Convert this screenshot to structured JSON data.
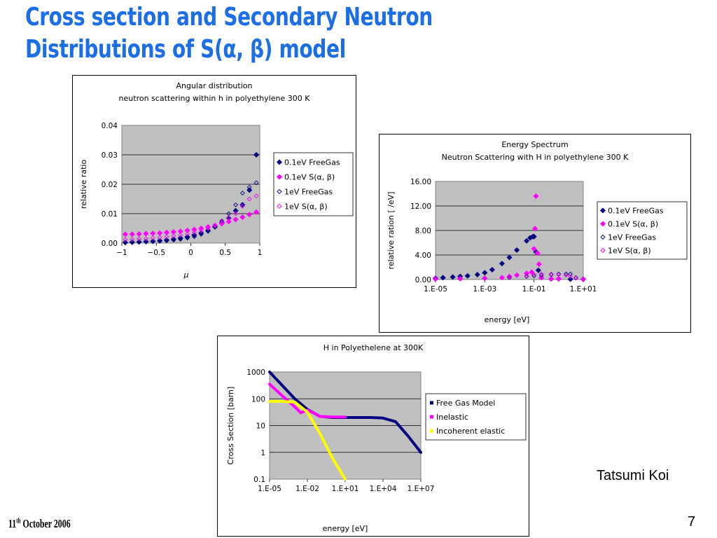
{
  "slide": {
    "title_line1": "Cross section and Secondary Neutron",
    "title_line2": "Distributions of S(α, β) model",
    "author": "Tatsumi Koi",
    "date_day": "11",
    "date_suffix": "th",
    "date_rest": " October 2006",
    "page_number": "7"
  },
  "colors": {
    "plot_bg": "#c0c0c0",
    "navy": "#000080",
    "magenta": "#ff00ff",
    "yellow": "#ffff00"
  },
  "chart_data": [
    {
      "type": "scatter",
      "title": "Angular distribution",
      "subtitle": "neutron scattering  within h in polyethylene 300 K",
      "xlabel": "μ",
      "ylabel": "relative ratio",
      "xlim": [
        -1,
        1
      ],
      "ylim": [
        0,
        0.04
      ],
      "xticks": [
        "−1",
        "−0.5",
        "0",
        "0.5",
        "1"
      ],
      "yticks": [
        "0.00",
        "0.01",
        "0.02",
        "0.03",
        "0.04"
      ],
      "grid": true,
      "legend_position": "right",
      "series": [
        {
          "name": "0.1eV FreeGas",
          "marker": "diamond-filled",
          "color": "#000080",
          "x": [
            -0.95,
            -0.85,
            -0.75,
            -0.65,
            -0.55,
            -0.45,
            -0.35,
            -0.25,
            -0.15,
            -0.05,
            0.05,
            0.15,
            0.25,
            0.35,
            0.45,
            0.55,
            0.65,
            0.75,
            0.85,
            0.95
          ],
          "y": [
            0.0002,
            0.0003,
            0.0004,
            0.0005,
            0.0006,
            0.0008,
            0.001,
            0.0013,
            0.0017,
            0.0021,
            0.0027,
            0.0034,
            0.0043,
            0.0055,
            0.007,
            0.0085,
            0.011,
            0.013,
            0.018,
            0.03
          ]
        },
        {
          "name": "0.1eV S(α, β)",
          "marker": "diamond-filled",
          "color": "#ff00ff",
          "x": [
            -0.95,
            -0.85,
            -0.75,
            -0.65,
            -0.55,
            -0.45,
            -0.35,
            -0.25,
            -0.15,
            -0.05,
            0.05,
            0.15,
            0.25,
            0.35,
            0.45,
            0.55,
            0.65,
            0.75,
            0.85,
            0.95
          ],
          "y": [
            0.003,
            0.003,
            0.0031,
            0.0032,
            0.0033,
            0.0034,
            0.0036,
            0.0038,
            0.004,
            0.0043,
            0.0046,
            0.005,
            0.0055,
            0.006,
            0.0066,
            0.0073,
            0.008,
            0.0088,
            0.0097,
            0.0105
          ]
        },
        {
          "name": "1eV FreeGas",
          "marker": "diamond-open",
          "color": "#000080",
          "x": [
            -0.95,
            -0.85,
            -0.75,
            -0.65,
            -0.55,
            -0.45,
            -0.35,
            -0.25,
            -0.15,
            -0.05,
            0.05,
            0.15,
            0.25,
            0.35,
            0.45,
            0.55,
            0.65,
            0.75,
            0.85,
            0.95
          ],
          "y": [
            0.0001,
            0.0002,
            0.0003,
            0.0004,
            0.0005,
            0.0006,
            0.0008,
            0.001,
            0.0013,
            0.0017,
            0.0022,
            0.003,
            0.004,
            0.0055,
            0.0075,
            0.01,
            0.013,
            0.017,
            0.019,
            0.0205
          ]
        },
        {
          "name": "1eV S(α, β)",
          "marker": "diamond-open",
          "color": "#ff00ff",
          "x": [
            -0.95,
            -0.85,
            -0.75,
            -0.65,
            -0.55,
            -0.45,
            -0.35,
            -0.25,
            -0.15,
            -0.05,
            0.05,
            0.15,
            0.25,
            0.35,
            0.45,
            0.55,
            0.65,
            0.75,
            0.85,
            0.95
          ],
          "y": [
            0.0012,
            0.0013,
            0.0014,
            0.0015,
            0.0017,
            0.0019,
            0.0021,
            0.0024,
            0.0027,
            0.0031,
            0.0036,
            0.0042,
            0.005,
            0.006,
            0.0072,
            0.0086,
            0.01,
            0.0125,
            0.015,
            0.016
          ]
        }
      ]
    },
    {
      "type": "scatter",
      "title": "Energy Spectrum",
      "subtitle": "Neutron Scattering with H in polyethylene 300 K",
      "xlabel": "energy [eV]",
      "ylabel": "relative ration [ /eV]",
      "xscale": "log",
      "xlim": [
        "1.E-05",
        "1.E+01"
      ],
      "ylim": [
        0,
        16
      ],
      "xticks": [
        "1.E-05",
        "1.E-03",
        "1.E-01",
        "1.E+01"
      ],
      "yticks": [
        "0.00",
        "4.00",
        "8.00",
        "12.00",
        "16.00"
      ],
      "grid": true,
      "legend_position": "right",
      "series": [
        {
          "name": "0.1eV FreeGas",
          "marker": "diamond-filled",
          "color": "#000080",
          "x": [
            1e-05,
            2e-05,
            5e-05,
            0.0001,
            0.0002,
            0.0005,
            0.001,
            0.002,
            0.005,
            0.01,
            0.02,
            0.05,
            0.07,
            0.09,
            0.1,
            0.12,
            0.15,
            0.2,
            0.5,
            1,
            3,
            10
          ],
          "y": [
            0.2,
            0.3,
            0.4,
            0.5,
            0.6,
            0.8,
            1.1,
            1.6,
            2.6,
            3.6,
            4.8,
            6.3,
            6.8,
            7.0,
            7.0,
            4.5,
            1.5,
            0.3,
            0.1,
            0.1,
            0.05,
            0.05
          ]
        },
        {
          "name": "0.1eV S(α, β)",
          "marker": "diamond-filled",
          "color": "#ff00ff",
          "x": [
            1e-05,
            0.0001,
            0.001,
            0.005,
            0.01,
            0.02,
            0.05,
            0.08,
            0.1,
            0.11,
            0.12,
            0.14,
            0.16,
            0.2,
            0.5,
            1,
            10
          ],
          "y": [
            0.1,
            0.15,
            0.2,
            0.3,
            0.5,
            0.7,
            1.0,
            1.2,
            5.0,
            8.3,
            13.6,
            4.3,
            2.5,
            0.3,
            0.1,
            0.1,
            0.05
          ]
        },
        {
          "name": "1eV FreeGas",
          "marker": "diamond-open",
          "color": "#000080",
          "x": [
            1e-05,
            0.0001,
            0.001,
            0.01,
            0.05,
            0.1,
            0.2,
            0.5,
            1,
            2,
            3,
            5,
            10
          ],
          "y": [
            0.05,
            0.1,
            0.2,
            0.3,
            0.5,
            0.6,
            0.7,
            0.8,
            0.9,
            0.9,
            0.9,
            0.3,
            0.05
          ]
        },
        {
          "name": "1eV S(α, β)",
          "marker": "diamond-open",
          "color": "#ff00ff",
          "x": [
            1e-05,
            0.0001,
            0.001,
            0.01,
            0.05,
            0.1,
            0.2,
            0.5,
            1,
            2,
            3,
            5,
            10
          ],
          "y": [
            0.05,
            0.1,
            0.2,
            0.4,
            0.6,
            0.8,
            0.9,
            0.9,
            0.8,
            0.7,
            0.5,
            0.2,
            0.05
          ]
        }
      ]
    },
    {
      "type": "line",
      "title": "H in Polyethelene at 300K",
      "xlabel": "energy [eV]",
      "ylabel": "Cross Section [barn]",
      "xscale": "log",
      "yscale": "log",
      "xlim": [
        "1.E-05",
        "1.E+07"
      ],
      "ylim": [
        0.1,
        1000
      ],
      "xticks": [
        "1.E-05",
        "1.E-02",
        "1.E+01",
        "1.E+04",
        "1.E+07"
      ],
      "yticks": [
        "0.1",
        "1",
        "10",
        "100",
        "1000"
      ],
      "grid": true,
      "legend_position": "right",
      "series": [
        {
          "name": "Free Gas Model",
          "color": "#000080",
          "x": [
            1e-05,
            0.0001,
            0.001,
            0.01,
            0.1,
            1,
            10,
            100,
            1000.0,
            10000.0,
            100000.0,
            1000000.0,
            10000000.0
          ],
          "y": [
            1000,
            316,
            100,
            40,
            22,
            20,
            20,
            20,
            20,
            19,
            14,
            4,
            1
          ]
        },
        {
          "name": "Inelastic",
          "color": "#ff00ff",
          "x": [
            1e-05,
            0.0001,
            0.001,
            0.003,
            0.01,
            0.03,
            0.1,
            1,
            10
          ],
          "y": [
            350,
            130,
            50,
            30,
            38,
            30,
            22,
            21,
            21
          ]
        },
        {
          "name": "Incoherent elastic",
          "color": "#ffff00",
          "x": [
            1e-05,
            0.0001,
            0.001,
            0.01,
            0.1,
            1,
            10
          ],
          "y": [
            80,
            80,
            75,
            32,
            5,
            0.6,
            0.1
          ]
        }
      ]
    }
  ]
}
